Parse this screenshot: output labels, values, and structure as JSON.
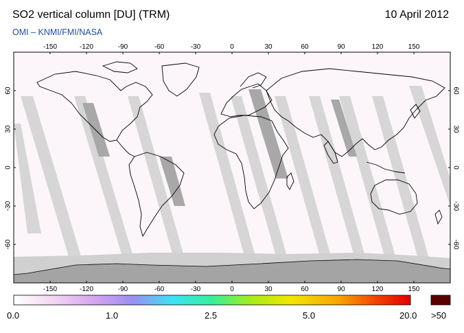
{
  "header": {
    "title": "SO2 vertical column [DU] (TRM)",
    "date": "10 April 2012",
    "credit": "OMI  –  KNMI/FMI/NASA"
  },
  "map": {
    "projection": "equirectangular",
    "lon_range": [
      -180,
      180
    ],
    "lat_range": [
      -90,
      90
    ],
    "lon_ticks": [
      "-150",
      "-120",
      "-90",
      "-60",
      "-30",
      "0",
      "30",
      "60",
      "90",
      "120",
      "150"
    ],
    "lat_ticks": [
      "60",
      "30",
      "0",
      "-30",
      "-60"
    ],
    "colors": {
      "background": "#fcf6fb",
      "swath_gap": "#d6d6d6",
      "nodata_dark": "#a4a4a4",
      "coast": "#000000"
    }
  },
  "colorbar": {
    "labels": [
      "0.0",
      "1.0",
      "2.5",
      "5.0",
      "20.0"
    ],
    "overflow_label": ">50",
    "overflow_color": "#5a0000",
    "gradient": [
      "#ffffff",
      "#f3d6f3",
      "#d7a6f0",
      "#9c8ef0",
      "#3de2f5",
      "#36ef9b",
      "#a8ed1a",
      "#f2e600",
      "#f8a400",
      "#f23d00",
      "#e00000"
    ]
  }
}
